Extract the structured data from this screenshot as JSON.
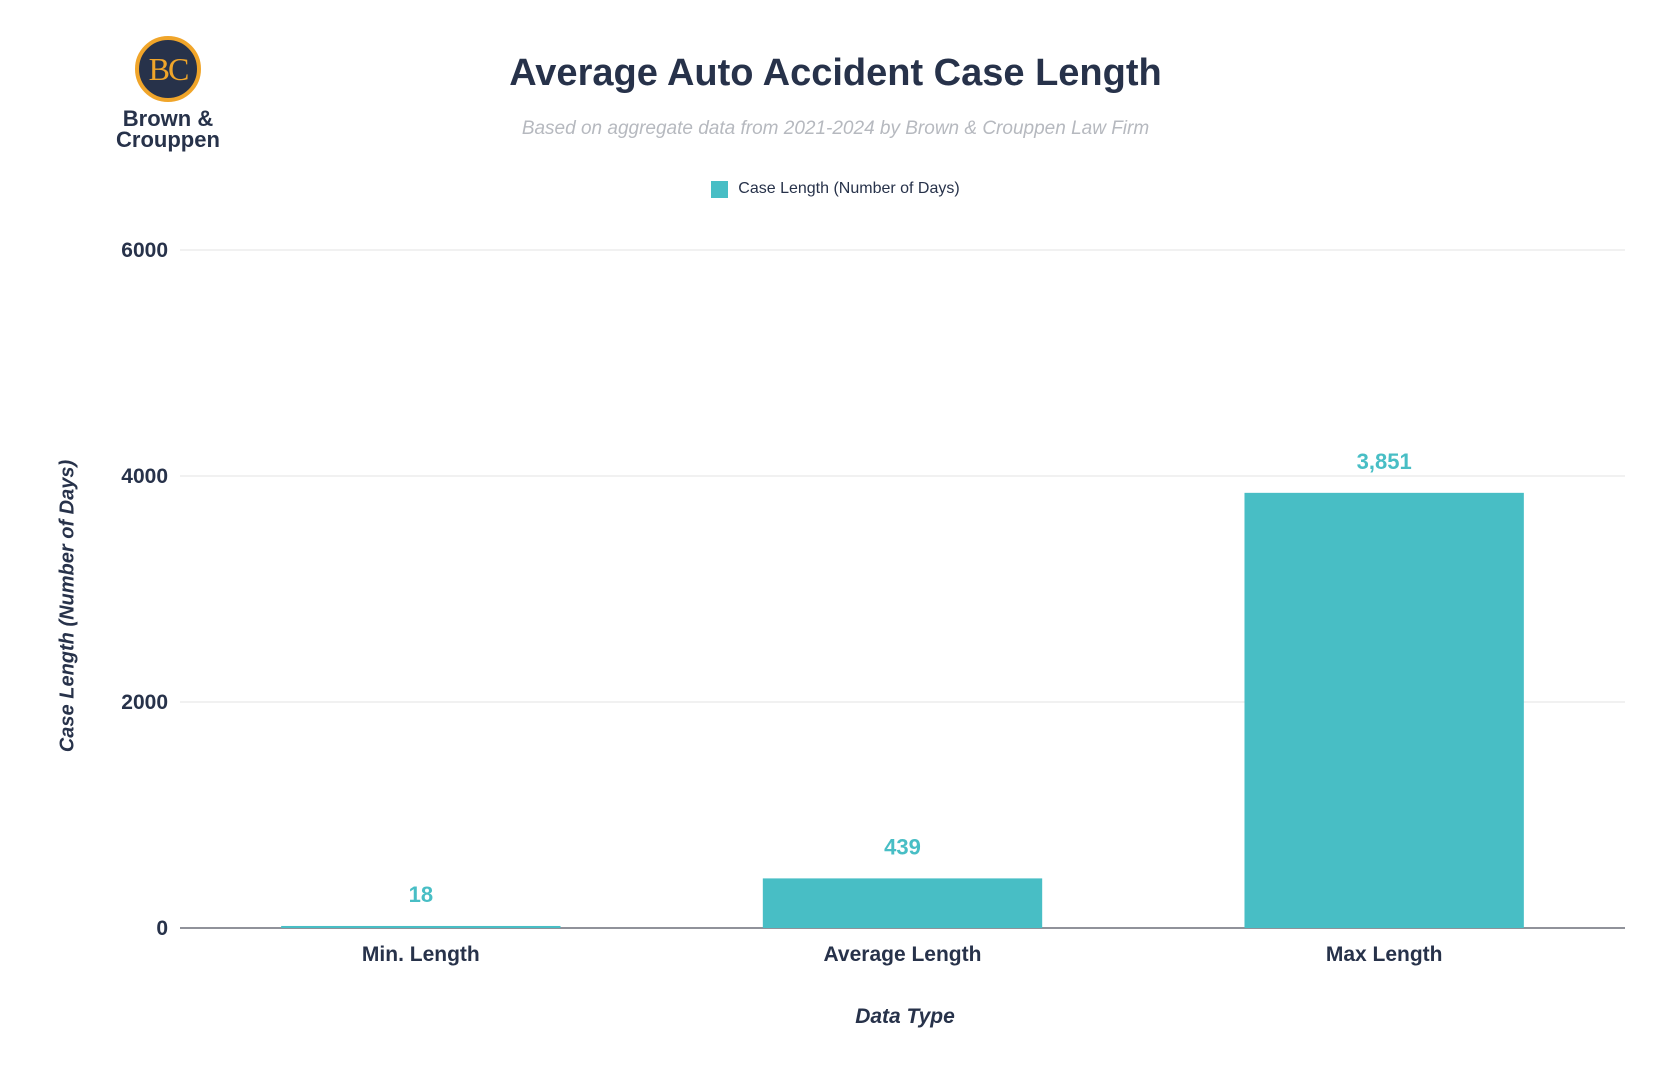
{
  "logo": {
    "monogram": "BC",
    "name_line1": "Brown &",
    "name_line2": "Crouppen"
  },
  "colors": {
    "bar": "#48bec5",
    "text": "#27324a",
    "subtitle": "#b6b9bf",
    "grid": "#e3e3e3",
    "logo_accent": "#f0a52a"
  },
  "chart_data": {
    "type": "bar",
    "title": "Average Auto Accident Case Length",
    "subtitle": "Based on aggregate data from 2021-2024 by Brown & Crouppen Law Firm",
    "categories": [
      "Min. Length",
      "Average Length",
      "Max Length"
    ],
    "series": [
      {
        "name": "Case Length (Number of Days)",
        "values": [
          18,
          439,
          3851
        ],
        "data_labels": [
          "18",
          "439",
          "3,851"
        ]
      }
    ],
    "xlabel": "Data Type",
    "ylabel": "Case Length (Number of Days)",
    "ylim": [
      0,
      6000
    ],
    "yticks": [
      0,
      2000,
      4000,
      6000
    ],
    "grid": true,
    "legend_position": "top-center"
  }
}
